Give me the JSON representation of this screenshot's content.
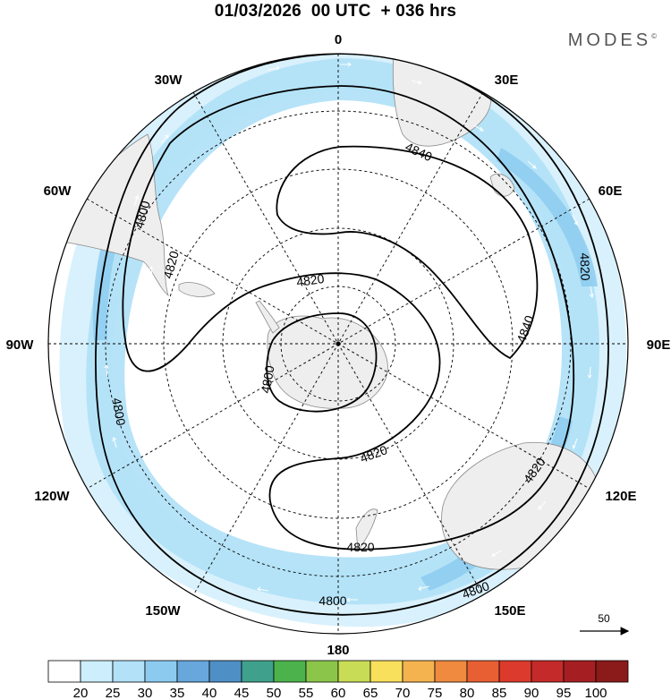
{
  "title": "01/03/2026  00 UTC  + 036 hrs",
  "brand": {
    "name": "MODES",
    "mark": "©"
  },
  "longitude_labels": [
    {
      "text": "0",
      "lon": 0
    },
    {
      "text": "30E",
      "lon": 30
    },
    {
      "text": "60E",
      "lon": 60
    },
    {
      "text": "90E",
      "lon": 90
    },
    {
      "text": "120E",
      "lon": 120
    },
    {
      "text": "150E",
      "lon": 150
    },
    {
      "text": "180",
      "lon": 180
    },
    {
      "text": "150W",
      "lon": -150
    },
    {
      "text": "120W",
      "lon": -120
    },
    {
      "text": "90W",
      "lon": -90
    },
    {
      "text": "60W",
      "lon": -60
    },
    {
      "text": "30W",
      "lon": -30
    }
  ],
  "contour_labels": [
    "4840",
    "4840",
    "4820",
    "4820",
    "4820",
    "4820",
    "4820",
    "4820",
    "4800",
    "4800",
    "4800",
    "4800"
  ],
  "vector_reference": {
    "value": "50"
  },
  "colorbar": {
    "ticks": [
      "20",
      "25",
      "30",
      "35",
      "40",
      "45",
      "50",
      "55",
      "60",
      "65",
      "70",
      "75",
      "80",
      "85",
      "90",
      "95",
      "100"
    ],
    "colors": [
      "#ffffff",
      "#cdeefc",
      "#b2e1f8",
      "#8ccbef",
      "#67a7dc",
      "#4e8fc6",
      "#3fa18c",
      "#4cb34c",
      "#8bc64a",
      "#c8dc55",
      "#f8e05c",
      "#f5b350",
      "#ef8a3f",
      "#e75f33",
      "#dc3a2c",
      "#c42a2a",
      "#a51f22",
      "#8b1a1a"
    ]
  },
  "chart_data": {
    "type": "map",
    "projection": "south polar stereographic",
    "variable": "500 hPa geopotential height (contours) and wind speed (shaded, vectors)",
    "contour_levels": [
      4800,
      4820,
      4840
    ],
    "shading_levels": [
      20,
      25,
      30,
      35,
      40,
      45,
      50,
      55,
      60,
      65,
      70,
      75,
      80,
      85,
      90,
      95,
      100
    ],
    "reference_vector": 50
  }
}
